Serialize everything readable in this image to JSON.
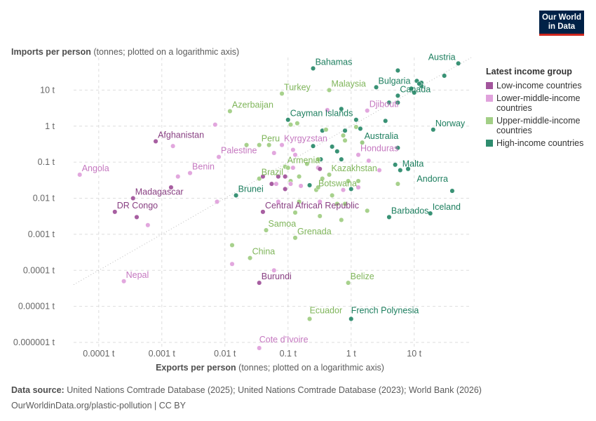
{
  "logo": {
    "line1": "Our World",
    "line2": "in Data"
  },
  "chart_data": {
    "type": "scatter",
    "title": "",
    "xlabel_bold": "Exports per person",
    "xlabel_note": " (tonnes; plotted on a logarithmic axis)",
    "ylabel_bold": "Imports per person",
    "ylabel_note": " (tonnes; plotted on a logarithmic axis)",
    "x_scale": "log",
    "y_scale": "log",
    "xlim": [
      4e-05,
      80
    ],
    "ylim": [
      7e-07,
      80
    ],
    "x_ticks": [
      {
        "value": 0.0001,
        "label": "0.0001 t"
      },
      {
        "value": 0.001,
        "label": "0.001 t"
      },
      {
        "value": 0.01,
        "label": "0.01 t"
      },
      {
        "value": 0.1,
        "label": "0.1 t"
      },
      {
        "value": 1,
        "label": "1 t"
      },
      {
        "value": 10,
        "label": "10 t"
      }
    ],
    "y_ticks": [
      {
        "value": 1e-06,
        "label": "0.000001 t"
      },
      {
        "value": 1e-05,
        "label": "0.00001 t"
      },
      {
        "value": 0.0001,
        "label": "0.0001 t"
      },
      {
        "value": 0.001,
        "label": "0.001 t"
      },
      {
        "value": 0.01,
        "label": "0.01 t"
      },
      {
        "value": 0.1,
        "label": "0.1 t"
      },
      {
        "value": 1,
        "label": "1 t"
      },
      {
        "value": 10,
        "label": "10 t"
      }
    ],
    "grid": true,
    "reference_line": "x = y",
    "legend_position": "right",
    "legend_title": "Latest income group",
    "groups": [
      {
        "key": "low",
        "name": "Low-income countries",
        "color": "#a2559c",
        "label_color": "#883f82"
      },
      {
        "key": "lmid",
        "name": "Lower-middle-income countries",
        "color": "#e0a2dc",
        "label_color": "#c578c0"
      },
      {
        "key": "umid",
        "name": "Upper-middle-income countries",
        "color": "#a2cf86",
        "label_color": "#7fb55a"
      },
      {
        "key": "high",
        "name": "High-income countries",
        "color": "#2e8c6e",
        "label_color": "#1c7e5e"
      }
    ],
    "points": [
      {
        "label": "Bahamas",
        "x": 0.25,
        "y": 40,
        "group": "high"
      },
      {
        "label": "Austria",
        "x": 50,
        "y": 55,
        "group": "high"
      },
      {
        "label": "Bulgaria",
        "x": 2.5,
        "y": 12,
        "group": "high"
      },
      {
        "label": "Canada",
        "x": 5.5,
        "y": 7,
        "group": "high"
      },
      {
        "label": "Cayman Islands",
        "x": 0.1,
        "y": 1.5,
        "group": "high"
      },
      {
        "label": "Norway",
        "x": 20,
        "y": 0.8,
        "group": "high"
      },
      {
        "label": "Australia",
        "x": 1.5,
        "y": 0.35,
        "group": "high"
      },
      {
        "label": "Malta",
        "x": 6,
        "y": 0.06,
        "group": "high"
      },
      {
        "label": "Andorra",
        "x": 40,
        "y": 0.016,
        "group": "high"
      },
      {
        "label": "Brunei",
        "x": 0.015,
        "y": 0.012,
        "group": "high"
      },
      {
        "label": "Barbados",
        "x": 4,
        "y": 0.003,
        "group": "high"
      },
      {
        "label": "Iceland",
        "x": 18,
        "y": 0.0038,
        "group": "high"
      },
      {
        "label": "French Polynesia",
        "x": 1,
        "y": 4.5e-06,
        "group": "high"
      },
      {
        "label": "",
        "x": 5.5,
        "y": 35,
        "group": "high"
      },
      {
        "label": "",
        "x": 30,
        "y": 25,
        "group": "high"
      },
      {
        "label": "",
        "x": 11,
        "y": 18,
        "group": "high"
      },
      {
        "label": "",
        "x": 13,
        "y": 16,
        "group": "high"
      },
      {
        "label": "",
        "x": 9,
        "y": 11,
        "group": "high"
      },
      {
        "label": "",
        "x": 13,
        "y": 13,
        "group": "high"
      },
      {
        "label": "",
        "x": 10,
        "y": 8.5,
        "group": "high"
      },
      {
        "label": "",
        "x": 12,
        "y": 15,
        "group": "high"
      },
      {
        "label": "",
        "x": 4,
        "y": 4.5,
        "group": "high"
      },
      {
        "label": "",
        "x": 5.5,
        "y": 4.5,
        "group": "high"
      },
      {
        "label": "",
        "x": 3.5,
        "y": 1.4,
        "group": "high"
      },
      {
        "label": "",
        "x": 0.7,
        "y": 3,
        "group": "high"
      },
      {
        "label": "",
        "x": 1.2,
        "y": 1.5,
        "group": "high"
      },
      {
        "label": "",
        "x": 0.8,
        "y": 0.75,
        "group": "high"
      },
      {
        "label": "",
        "x": 1.4,
        "y": 0.85,
        "group": "high"
      },
      {
        "label": "",
        "x": 0.35,
        "y": 0.75,
        "group": "high"
      },
      {
        "label": "",
        "x": 5.5,
        "y": 0.25,
        "group": "high"
      },
      {
        "label": "",
        "x": 0.25,
        "y": 0.28,
        "group": "high"
      },
      {
        "label": "",
        "x": 0.5,
        "y": 0.27,
        "group": "high"
      },
      {
        "label": "",
        "x": 0.6,
        "y": 0.2,
        "group": "high"
      },
      {
        "label": "",
        "x": 0.7,
        "y": 0.12,
        "group": "high"
      },
      {
        "label": "",
        "x": 0.33,
        "y": 0.12,
        "group": "high"
      },
      {
        "label": "",
        "x": 8,
        "y": 0.065,
        "group": "high"
      },
      {
        "label": "",
        "x": 5,
        "y": 0.085,
        "group": "high"
      },
      {
        "label": "",
        "x": 1,
        "y": 0.018,
        "group": "high"
      },
      {
        "label": "",
        "x": 0.22,
        "y": 0.023,
        "group": "high"
      },
      {
        "label": "Turkey",
        "x": 0.08,
        "y": 8,
        "group": "umid"
      },
      {
        "label": "Malaysia",
        "x": 0.45,
        "y": 10,
        "group": "umid"
      },
      {
        "label": "Azerbaijan",
        "x": 0.012,
        "y": 2.6,
        "group": "umid"
      },
      {
        "label": "Peru",
        "x": 0.035,
        "y": 0.3,
        "group": "umid"
      },
      {
        "label": "Armenia",
        "x": 0.09,
        "y": 0.075,
        "group": "umid"
      },
      {
        "label": "Brazil",
        "x": 0.035,
        "y": 0.035,
        "group": "umid"
      },
      {
        "label": "Kazakhstan",
        "x": 0.45,
        "y": 0.045,
        "group": "umid"
      },
      {
        "label": "Botswana",
        "x": 0.28,
        "y": 0.017,
        "group": "umid"
      },
      {
        "label": "Samoa",
        "x": 0.045,
        "y": 0.0013,
        "group": "umid"
      },
      {
        "label": "Grenada",
        "x": 0.13,
        "y": 0.0008,
        "group": "umid"
      },
      {
        "label": "China",
        "x": 0.025,
        "y": 0.00022,
        "group": "umid"
      },
      {
        "label": "Belize",
        "x": 0.9,
        "y": 4.5e-05,
        "group": "umid"
      },
      {
        "label": "Ecuador",
        "x": 0.22,
        "y": 4.5e-06,
        "group": "umid"
      },
      {
        "label": "",
        "x": 0.013,
        "y": 0.0005,
        "group": "umid"
      },
      {
        "label": "",
        "x": 0.022,
        "y": 0.3,
        "group": "umid"
      },
      {
        "label": "",
        "x": 0.05,
        "y": 0.3,
        "group": "umid"
      },
      {
        "label": "",
        "x": 0.11,
        "y": 1.1,
        "group": "umid"
      },
      {
        "label": "",
        "x": 0.14,
        "y": 1.2,
        "group": "umid"
      },
      {
        "label": "",
        "x": 0.4,
        "y": 0.8,
        "group": "umid"
      },
      {
        "label": "",
        "x": 0.75,
        "y": 0.55,
        "group": "umid"
      },
      {
        "label": "",
        "x": 1.2,
        "y": 0.95,
        "group": "umid"
      },
      {
        "label": "",
        "x": 0.8,
        "y": 0.4,
        "group": "umid"
      },
      {
        "label": "",
        "x": 1.5,
        "y": 0.35,
        "group": "umid"
      },
      {
        "label": "",
        "x": 0.3,
        "y": 0.12,
        "group": "umid"
      },
      {
        "label": "",
        "x": 0.1,
        "y": 0.07,
        "group": "umid"
      },
      {
        "label": "",
        "x": 0.2,
        "y": 0.09,
        "group": "umid"
      },
      {
        "label": "",
        "x": 0.15,
        "y": 0.04,
        "group": "umid"
      },
      {
        "label": "",
        "x": 0.11,
        "y": 0.03,
        "group": "umid"
      },
      {
        "label": "",
        "x": 0.35,
        "y": 0.035,
        "group": "umid"
      },
      {
        "label": "",
        "x": 0.9,
        "y": 0.03,
        "group": "umid"
      },
      {
        "label": "",
        "x": 0.5,
        "y": 0.012,
        "group": "umid"
      },
      {
        "label": "",
        "x": 0.6,
        "y": 0.007,
        "group": "umid"
      },
      {
        "label": "",
        "x": 0.8,
        "y": 0.007,
        "group": "umid"
      },
      {
        "label": "",
        "x": 1.8,
        "y": 0.0045,
        "group": "umid"
      },
      {
        "label": "",
        "x": 0.7,
        "y": 0.0025,
        "group": "umid"
      },
      {
        "label": "",
        "x": 0.32,
        "y": 0.0032,
        "group": "umid"
      },
      {
        "label": "",
        "x": 5.5,
        "y": 0.025,
        "group": "umid"
      },
      {
        "label": "",
        "x": 0.15,
        "y": 0.008,
        "group": "umid"
      },
      {
        "label": "",
        "x": 0.3,
        "y": 0.02,
        "group": "umid"
      },
      {
        "label": "",
        "x": 1.3,
        "y": 0.03,
        "group": "umid"
      },
      {
        "label": "",
        "x": 0.13,
        "y": 0.004,
        "group": "umid"
      },
      {
        "label": "Djibouti",
        "x": 1.8,
        "y": 2.7,
        "group": "lmid"
      },
      {
        "label": "Palestine",
        "x": 0.008,
        "y": 0.14,
        "group": "lmid"
      },
      {
        "label": "Kyrgyzstan",
        "x": 0.08,
        "y": 0.3,
        "group": "lmid"
      },
      {
        "label": "Honduras",
        "x": 1.3,
        "y": 0.16,
        "group": "lmid"
      },
      {
        "label": "Benin",
        "x": 0.0028,
        "y": 0.05,
        "group": "lmid"
      },
      {
        "label": "Angola",
        "x": 5e-05,
        "y": 0.045,
        "group": "lmid"
      },
      {
        "label": "Nepal",
        "x": 0.00025,
        "y": 5e-05,
        "group": "lmid"
      },
      {
        "label": "Cote d'Ivoire",
        "x": 0.035,
        "y": 7e-07,
        "group": "lmid"
      },
      {
        "label": "",
        "x": 0.007,
        "y": 1.1,
        "group": "lmid"
      },
      {
        "label": "",
        "x": 0.0015,
        "y": 0.28,
        "group": "lmid"
      },
      {
        "label": "",
        "x": 0.0018,
        "y": 0.04,
        "group": "lmid"
      },
      {
        "label": "",
        "x": 0.0075,
        "y": 0.008,
        "group": "lmid"
      },
      {
        "label": "",
        "x": 0.0006,
        "y": 0.0018,
        "group": "lmid"
      },
      {
        "label": "",
        "x": 0.013,
        "y": 0.00015,
        "group": "lmid"
      },
      {
        "label": "",
        "x": 0.06,
        "y": 0.0001,
        "group": "lmid"
      },
      {
        "label": "",
        "x": 0.06,
        "y": 0.18,
        "group": "lmid"
      },
      {
        "label": "",
        "x": 0.12,
        "y": 0.22,
        "group": "lmid"
      },
      {
        "label": "",
        "x": 0.13,
        "y": 0.16,
        "group": "lmid"
      },
      {
        "label": "",
        "x": 0.12,
        "y": 0.07,
        "group": "lmid"
      },
      {
        "label": "",
        "x": 0.3,
        "y": 0.07,
        "group": "lmid"
      },
      {
        "label": "",
        "x": 2.8,
        "y": 0.06,
        "group": "lmid"
      },
      {
        "label": "",
        "x": 1.9,
        "y": 0.11,
        "group": "lmid"
      },
      {
        "label": "",
        "x": 0.065,
        "y": 0.025,
        "group": "lmid"
      },
      {
        "label": "",
        "x": 0.16,
        "y": 0.022,
        "group": "lmid"
      },
      {
        "label": "",
        "x": 0.07,
        "y": 0.008,
        "group": "lmid"
      },
      {
        "label": "",
        "x": 0.32,
        "y": 0.008,
        "group": "lmid"
      },
      {
        "label": "",
        "x": 1.3,
        "y": 0.02,
        "group": "lmid"
      },
      {
        "label": "",
        "x": 0.75,
        "y": 0.017,
        "group": "lmid"
      },
      {
        "label": "",
        "x": 0.42,
        "y": 2.8,
        "group": "lmid"
      },
      {
        "label": "",
        "x": 0.11,
        "y": 0.025,
        "group": "lmid"
      },
      {
        "label": "Afghanistan",
        "x": 0.0008,
        "y": 0.38,
        "group": "low"
      },
      {
        "label": "Madagascar",
        "x": 0.00035,
        "y": 0.01,
        "group": "low"
      },
      {
        "label": "DR Congo",
        "x": 0.00018,
        "y": 0.0042,
        "group": "low"
      },
      {
        "label": "Central African Republic",
        "x": 0.04,
        "y": 0.0042,
        "group": "low"
      },
      {
        "label": "Burundi",
        "x": 0.035,
        "y": 4.5e-05,
        "group": "low"
      },
      {
        "label": "",
        "x": 0.0004,
        "y": 0.003,
        "group": "low"
      },
      {
        "label": "",
        "x": 0.0014,
        "y": 0.02,
        "group": "low"
      },
      {
        "label": "",
        "x": 0.04,
        "y": 0.04,
        "group": "low"
      },
      {
        "label": "",
        "x": 0.055,
        "y": 0.025,
        "group": "low"
      },
      {
        "label": "",
        "x": 0.07,
        "y": 0.04,
        "group": "low"
      },
      {
        "label": "",
        "x": 0.09,
        "y": 0.018,
        "group": "low"
      },
      {
        "label": "",
        "x": 0.09,
        "y": 0.04,
        "group": "low"
      },
      {
        "label": "",
        "x": 0.32,
        "y": 0.065,
        "group": "low"
      }
    ]
  },
  "footer": {
    "source_label": "Data source:",
    "source_text": " United Nations Comtrade Database (2025); United Nations Comtrade Database (2023); World Bank (2026)",
    "url_text": "OurWorldinData.org/plastic-pollution | CC BY"
  }
}
